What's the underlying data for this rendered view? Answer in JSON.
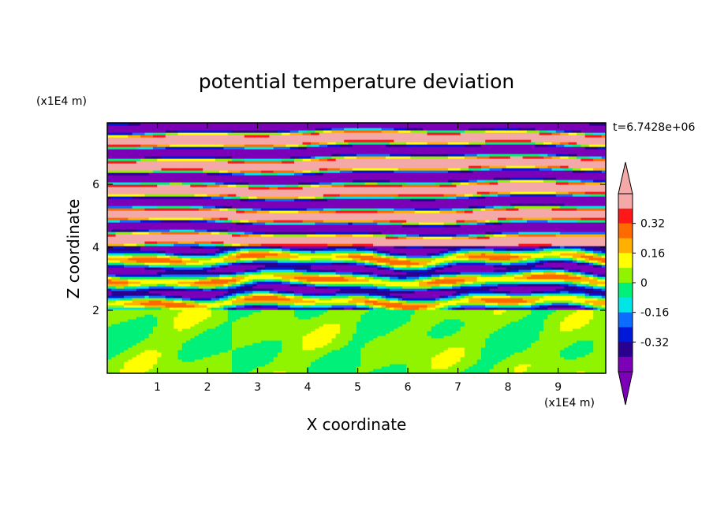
{
  "chart_data": {
    "type": "heatmap",
    "title": "potential temperature deviation",
    "xlabel": "X coordinate",
    "ylabel": "Z coordinate",
    "x_unit": "(x1E4 m)",
    "y_unit": "(x1E4 m)",
    "time_label": "t=6.7428e+06",
    "xlim": [
      0,
      9.95
    ],
    "ylim": [
      0,
      7.95
    ],
    "x_ticks": [
      "1",
      "2",
      "3",
      "4",
      "5",
      "6",
      "7",
      "8",
      "9"
    ],
    "y_ticks": [
      "2",
      "4",
      "6"
    ],
    "colorbar": {
      "levels": [
        -0.48,
        -0.4,
        -0.32,
        -0.24,
        -0.16,
        -0.08,
        0,
        0.08,
        0.16,
        0.24,
        0.32,
        0.4,
        0.48
      ],
      "tick_labels": [
        "0.32",
        "0.16",
        "0",
        "-0.16",
        "-0.32"
      ],
      "colors_low_to_high": [
        "#7b00b8",
        "#2a008f",
        "#0018d8",
        "#0c6cff",
        "#00e6e6",
        "#00f07a",
        "#90f400",
        "#ffff00",
        "#ffb000",
        "#ff6a00",
        "#ff1818",
        "#f4a8a8"
      ],
      "under_color": "#7b00b8",
      "over_color": "#f4a8a8"
    },
    "layers": [
      {
        "z_range": [
          0,
          2.0
        ],
        "description": "mostly small values",
        "dominant_value": 0.0
      },
      {
        "z_range": [
          2.0,
          4.0
        ],
        "description": "mixed wave band",
        "dominant_value": -0.1
      },
      {
        "z_range": [
          4.0,
          7.95
        ],
        "description": "alternating layers",
        "dominant_value": "alternating -0.5 / 0.5"
      }
    ],
    "grid": false,
    "legend": "right colorbar"
  }
}
